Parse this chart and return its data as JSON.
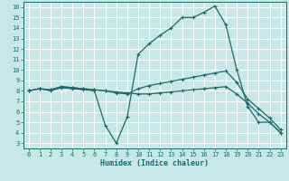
{
  "xlabel": "Humidex (Indice chaleur)",
  "xticks": [
    0,
    1,
    2,
    3,
    4,
    5,
    6,
    7,
    8,
    9,
    10,
    11,
    12,
    13,
    14,
    15,
    16,
    17,
    18,
    19,
    20,
    21,
    22,
    23
  ],
  "yticks": [
    3,
    4,
    5,
    6,
    7,
    8,
    9,
    10,
    11,
    12,
    13,
    14,
    15,
    16
  ],
  "xlim": [
    -0.5,
    23.5
  ],
  "ylim": [
    2.5,
    16.5
  ],
  "bg_color": "#c8e8e8",
  "line_color": "#1a6b6b",
  "grid_color": "#ffffff",
  "line1_x": [
    0,
    1,
    2,
    3,
    4,
    5,
    6,
    7,
    8,
    9,
    10,
    11,
    12,
    13,
    14,
    15,
    16,
    17,
    18,
    19,
    20,
    21,
    22,
    23
  ],
  "line1_y": [
    8.0,
    8.2,
    8.0,
    8.3,
    8.2,
    8.1,
    8.0,
    4.7,
    3.0,
    5.5,
    11.5,
    12.5,
    13.3,
    14.0,
    15.0,
    15.0,
    15.5,
    16.1,
    14.3,
    10.0,
    6.5,
    5.0,
    5.0,
    4.0
  ],
  "line2_x": [
    0,
    1,
    2,
    3,
    4,
    5,
    6,
    7,
    8,
    9,
    10,
    11,
    12,
    13,
    14,
    15,
    16,
    17,
    18,
    19,
    20,
    21,
    22,
    23
  ],
  "line2_y": [
    8.0,
    8.2,
    8.1,
    8.4,
    8.3,
    8.2,
    8.1,
    8.0,
    7.8,
    7.7,
    8.2,
    8.5,
    8.7,
    8.9,
    9.1,
    9.3,
    9.5,
    9.7,
    9.9,
    8.8,
    7.2,
    6.3,
    5.4,
    4.3
  ],
  "line3_x": [
    0,
    1,
    2,
    3,
    4,
    5,
    6,
    7,
    8,
    9,
    10,
    11,
    12,
    13,
    14,
    15,
    16,
    17,
    18,
    19,
    20,
    21,
    22,
    23
  ],
  "line3_y": [
    8.0,
    8.2,
    8.1,
    8.4,
    8.3,
    8.2,
    8.1,
    8.0,
    7.9,
    7.8,
    7.7,
    7.7,
    7.8,
    7.9,
    8.0,
    8.1,
    8.2,
    8.3,
    8.4,
    7.7,
    6.8,
    5.8,
    5.0,
    4.0
  ]
}
